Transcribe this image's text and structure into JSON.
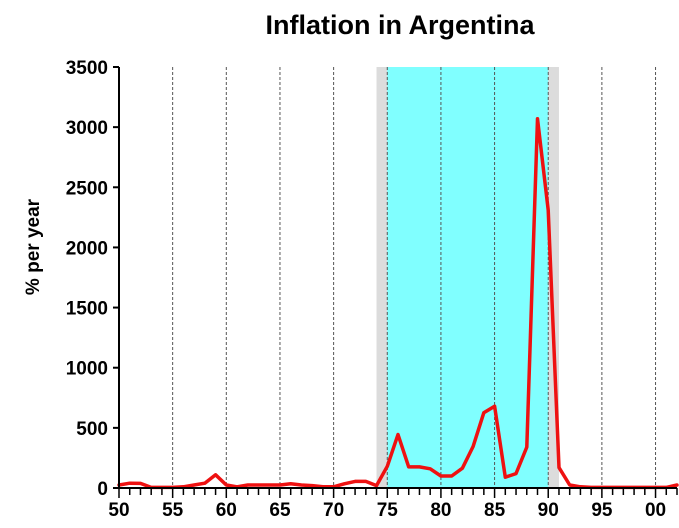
{
  "chart_data": {
    "type": "line",
    "title": "Inflation in Argentina",
    "xlabel": "",
    "ylabel": "% per year",
    "xlim": [
      1950,
      2002
    ],
    "ylim": [
      0,
      3500
    ],
    "x_tick_labels": [
      {
        "value": 1950,
        "label": "50"
      },
      {
        "value": 1955,
        "label": "55"
      },
      {
        "value": 1960,
        "label": "60"
      },
      {
        "value": 1965,
        "label": "65"
      },
      {
        "value": 1970,
        "label": "70"
      },
      {
        "value": 1975,
        "label": "75"
      },
      {
        "value": 1980,
        "label": "80"
      },
      {
        "value": 1985,
        "label": "85"
      },
      {
        "value": 1990,
        "label": "90"
      },
      {
        "value": 1995,
        "label": "95"
      },
      {
        "value": 2000,
        "label": "00"
      }
    ],
    "y_ticks": [
      0,
      500,
      1000,
      1500,
      2000,
      2500,
      3000,
      3500
    ],
    "grid": "vertical dashed every 5 years",
    "shaded_periods": [
      {
        "from": 1974,
        "to": 1991,
        "color": "#dcdcdc"
      },
      {
        "from": 1975,
        "to": 1990,
        "color": "#80ffff"
      }
    ],
    "line_color": "#ee1111",
    "series": [
      {
        "x": [
          1950,
          1951,
          1952,
          1953,
          1954,
          1955,
          1956,
          1957,
          1958,
          1959,
          1960,
          1961,
          1962,
          1963,
          1964,
          1965,
          1966,
          1967,
          1968,
          1969,
          1970,
          1971,
          1972,
          1973,
          1974,
          1975,
          1976,
          1977,
          1978,
          1979,
          1980,
          1981,
          1982,
          1983,
          1984,
          1985,
          1986,
          1987,
          1988,
          1989,
          1990,
          1991,
          1992,
          1993,
          1994,
          1995,
          1996,
          1997,
          1998,
          1999,
          2000,
          2001,
          2002
        ],
        "values": [
          25,
          40,
          38,
          5,
          5,
          5,
          10,
          25,
          40,
          110,
          25,
          10,
          25,
          25,
          25,
          25,
          35,
          25,
          20,
          10,
          10,
          35,
          55,
          55,
          20,
          180,
          445,
          175,
          175,
          160,
          100,
          100,
          165,
          345,
          625,
          680,
          90,
          120,
          340,
          3070,
          2310,
          170,
          25,
          10,
          5,
          5,
          5,
          5,
          5,
          5,
          5,
          5,
          25
        ]
      }
    ]
  }
}
